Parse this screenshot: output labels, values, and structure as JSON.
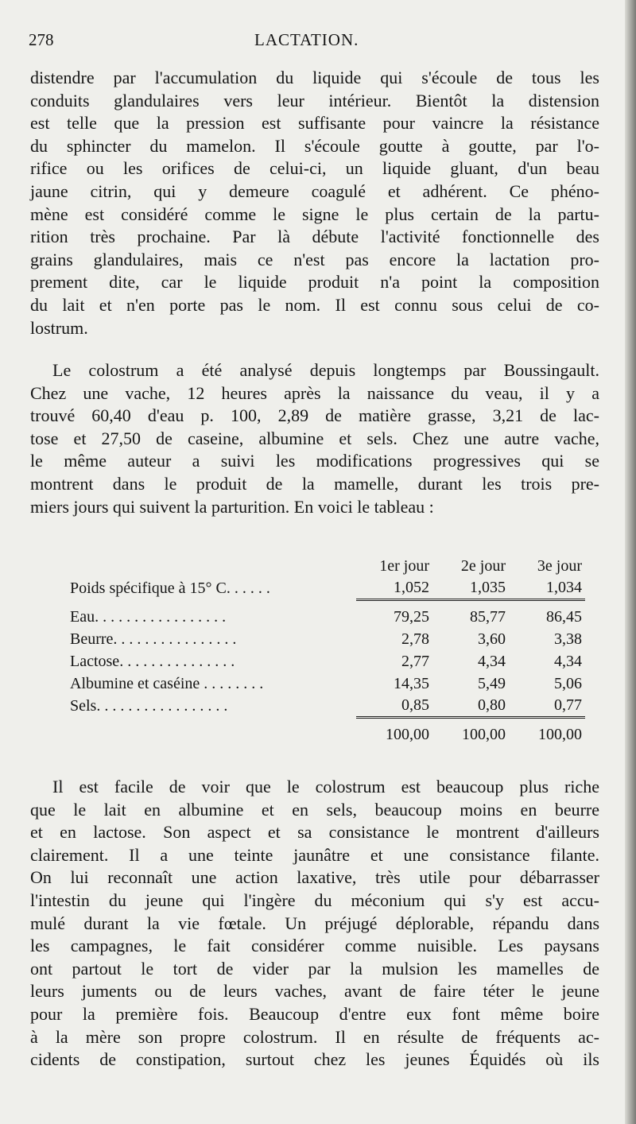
{
  "header": {
    "page_number": "278",
    "running_title": "LACTATION."
  },
  "paragraph1": [
    "distendre par l'accumulation du liquide qui s'écoule de tous les",
    "conduits glandulaires vers leur intérieur. Bientôt la distension",
    "est telle que la pression est suffisante pour vaincre la résistance",
    "du sphincter du mamelon. Il s'écoule goutte à goutte, par l'o-",
    "rifice ou les orifices de celui-ci, un liquide gluant, d'un beau",
    "jaune citrin, qui y demeure coagulé et adhérent. Ce phéno-",
    "mène est considéré comme le signe le plus certain de la partu-",
    "rition très prochaine. Par là débute l'activité fonctionnelle des",
    "grains glandulaires, mais ce n'est pas encore la lactation pro-",
    "prement dite, car le liquide produit n'a point la composition",
    "du lait et n'en porte pas le nom. Il est connu sous celui de co-",
    "lostrum."
  ],
  "paragraph2": [
    "Le colostrum a été analysé depuis longtemps par Boussingault.",
    "Chez une vache, 12 heures après la naissance du veau, il y a",
    "trouvé 60,40 d'eau p. 100, 2,89 de matière grasse, 3,21 de lac-",
    "tose et 27,50 de caseine, albumine et sels. Chez une autre vache,",
    "le même auteur a suivi les modifications progressives qui se",
    "montrent dans le produit de la mamelle, durant les trois pre-",
    "miers jours qui suivent la parturition. En voici le tableau :"
  ],
  "table": {
    "columns": [
      "1er jour",
      "2e jour",
      "3e jour"
    ],
    "density": {
      "label": "Poids spécifique à 15° C. . . . . .",
      "values": [
        "1,052",
        "1,035",
        "1,034"
      ]
    },
    "rows": [
      {
        "label": "Eau. . . . . . . . . . . . . . . . .",
        "values": [
          "79,25",
          "85,77",
          "86,45"
        ]
      },
      {
        "label": "Beurre. . . . . . . . . . . . . . . .",
        "values": [
          "2,78",
          "3,60",
          "3,38"
        ]
      },
      {
        "label": "Lactose. . . . . . . . . . . . . . .",
        "values": [
          "2,77",
          "4,34",
          "4,34"
        ]
      },
      {
        "label": "Albumine et caséine . . . . . . . .",
        "values": [
          "14,35",
          "5,49",
          "5,06"
        ]
      },
      {
        "label": "Sels. . . . . . . . . . . . . . . . .",
        "values": [
          "0,85",
          "0,80",
          "0,77"
        ]
      }
    ],
    "totals": [
      "100,00",
      "100,00",
      "100,00"
    ]
  },
  "paragraph3": [
    "Il est facile de voir que le colostrum est beaucoup plus riche",
    "que le lait en albumine et en sels, beaucoup moins en beurre",
    "et en lactose. Son aspect et sa consistance le montrent d'ailleurs",
    "clairement. Il a une teinte jaunâtre et une consistance filante.",
    "On lui reconnaît une action laxative, très utile pour débarrasser",
    "l'intestin du jeune qui l'ingère du méconium qui s'y est accu-",
    "mulé durant la vie fœtale. Un préjugé déplorable, répandu dans",
    "les campagnes, le fait considérer comme nuisible. Les paysans",
    "ont partout le tort de vider par la mulsion les mamelles de",
    "leurs juments ou de leurs vaches, avant de faire téter le jeune",
    "pour la première fois. Beaucoup d'entre eux font même boire",
    "à la mère son propre colostrum. Il en résulte de fréquents ac-",
    "cidents de constipation, surtout chez les jeunes Équidés où ils"
  ]
}
